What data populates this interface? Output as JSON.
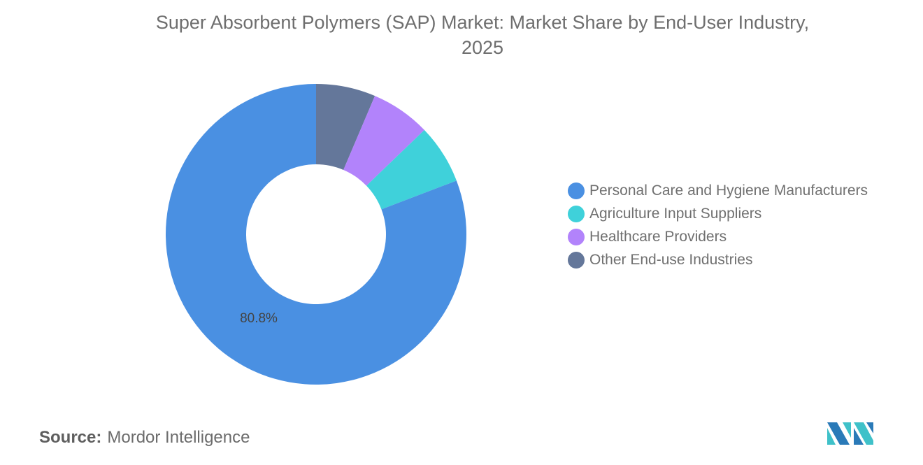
{
  "chart_data": {
    "type": "pie",
    "donut": true,
    "title": "Super Absorbent Polymers (SAP) Market: Market Share by End-User Industry, 2025",
    "title_lines": [
      "Super Absorbent Polymers (SAP) Market: Market Share by End-User Industry,",
      "2025"
    ],
    "unit": "%",
    "slices": [
      {
        "name": "Other End-use Industries",
        "value": 6.4,
        "color": "#64779a",
        "label": ""
      },
      {
        "name": "Healthcare Providers",
        "value": 6.4,
        "color": "#b283fb",
        "label": ""
      },
      {
        "name": "Agriculture Input Suppliers",
        "value": 6.4,
        "color": "#3fd1da",
        "label": ""
      },
      {
        "name": "Personal Care and Hygiene Manufacturers",
        "value": 80.8,
        "color": "#4a90e2",
        "label": "80.8%"
      }
    ],
    "start_angle": "top",
    "direction": "clockwise",
    "legend": {
      "placement": "right",
      "items": [
        {
          "label": "Personal Care and Hygiene Manufacturers",
          "color": "#4a90e2"
        },
        {
          "label": "Agriculture Input Suppliers",
          "color": "#3fd1da"
        },
        {
          "label": "Healthcare Providers",
          "color": "#b283fb"
        },
        {
          "label": "Other End-use Industries",
          "color": "#64779a"
        }
      ]
    }
  },
  "source": {
    "label": "Source:",
    "value": "Mordor Intelligence"
  },
  "logo": {
    "name": "Mordor Intelligence logo",
    "colors": [
      "#2a7ab8",
      "#3fc1c9"
    ]
  }
}
